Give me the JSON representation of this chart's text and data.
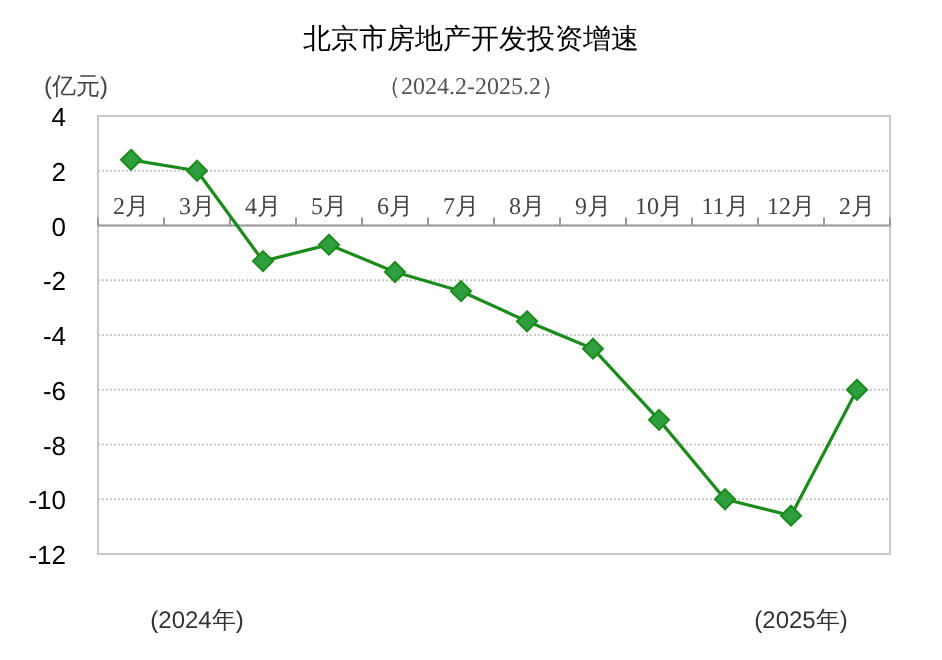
{
  "chart_data": {
    "type": "line",
    "title": "北京市房地产开发投资增速",
    "subtitle": "（2024.2-2025.2）",
    "ylabel": "(亿元)",
    "categories": [
      "2月",
      "3月",
      "4月",
      "5月",
      "6月",
      "7月",
      "8月",
      "9月",
      "10月",
      "11月",
      "12月",
      "2月"
    ],
    "series": [
      {
        "color": "#1a8c1a",
        "values": [
          2.4,
          2.0,
          -1.3,
          -0.7,
          -1.7,
          -2.4,
          -3.5,
          -4.5,
          -7.1,
          -10.0,
          -10.6,
          -6.0
        ]
      }
    ],
    "ylim": [
      -12,
      4
    ],
    "yticks": [
      -12,
      -10,
      -8,
      -6,
      -4,
      -2,
      0,
      2,
      4
    ],
    "grid": "y",
    "marker": "diamond",
    "line_style": "solid",
    "annotations": [
      "(2024年)",
      "(2025年)"
    ]
  }
}
